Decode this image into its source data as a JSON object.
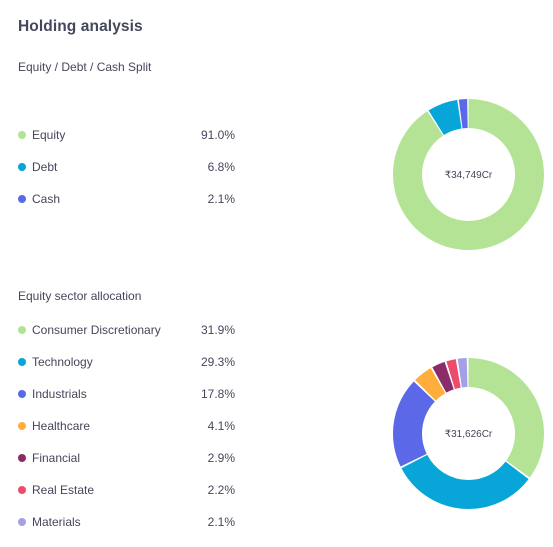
{
  "page_title": "Holding analysis",
  "split": {
    "title": "Equity / Debt / Cash Split",
    "center_value": "₹34,749Cr",
    "items": [
      {
        "label": "Equity",
        "value": "91.0%",
        "pct": 91.0,
        "color": "#b4e396"
      },
      {
        "label": "Debt",
        "value": "6.8%",
        "pct": 6.8,
        "color": "#08a6d8"
      },
      {
        "label": "Cash",
        "value": "2.1%",
        "pct": 2.1,
        "color": "#5b68e8"
      }
    ]
  },
  "sectors": {
    "title": "Equity sector allocation",
    "center_value": "₹31,626Cr",
    "items": [
      {
        "label": "Consumer Discretionary",
        "value": "31.9%",
        "pct": 31.9,
        "color": "#b4e396"
      },
      {
        "label": "Technology",
        "value": "29.3%",
        "pct": 29.3,
        "color": "#08a6d8"
      },
      {
        "label": "Industrials",
        "value": "17.8%",
        "pct": 17.8,
        "color": "#5b68e8"
      },
      {
        "label": "Healthcare",
        "value": "4.1%",
        "pct": 4.1,
        "color": "#ffae3b"
      },
      {
        "label": "Financial",
        "value": "2.9%",
        "pct": 2.9,
        "color": "#8a2c6a"
      },
      {
        "label": "Real Estate",
        "value": "2.2%",
        "pct": 2.2,
        "color": "#ea4c6a"
      },
      {
        "label": "Materials",
        "value": "2.1%",
        "pct": 2.1,
        "color": "#a3a0e8"
      }
    ]
  }
}
